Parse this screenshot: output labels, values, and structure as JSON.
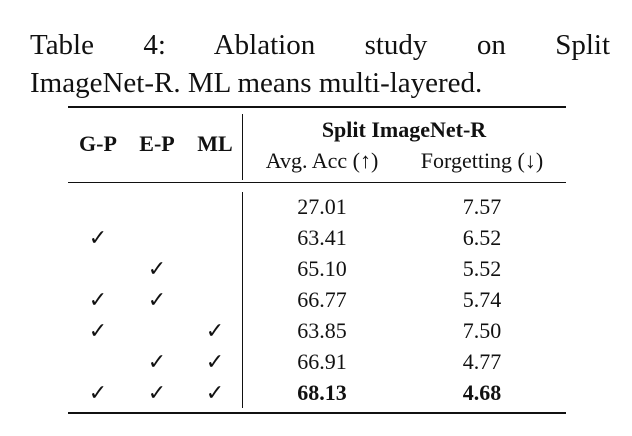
{
  "caption": {
    "lines": [
      "Table 4: Ablation study on Split",
      "ImageNet-R. ML means multi-layered."
    ]
  },
  "table": {
    "columns": [
      "G-P",
      "E-P",
      "ML"
    ],
    "group_header": "Split ImageNet-R",
    "metrics": [
      "Avg. Acc (↑)",
      "Forgetting (↓)"
    ],
    "rows": [
      [
        null,
        null,
        null,
        "27.01",
        "7.57"
      ],
      [
        "✓",
        null,
        null,
        "63.41",
        "6.52"
      ],
      [
        null,
        "✓",
        null,
        "65.10",
        "5.52"
      ],
      [
        "✓",
        "✓",
        null,
        "66.77",
        "5.74"
      ],
      [
        "✓",
        null,
        "✓",
        "63.85",
        "7.50"
      ],
      [
        null,
        "✓",
        "✓",
        "66.91",
        "4.77"
      ],
      [
        "✓",
        "✓",
        "✓",
        "68.13",
        "4.68"
      ]
    ],
    "bold_row": 6
  }
}
